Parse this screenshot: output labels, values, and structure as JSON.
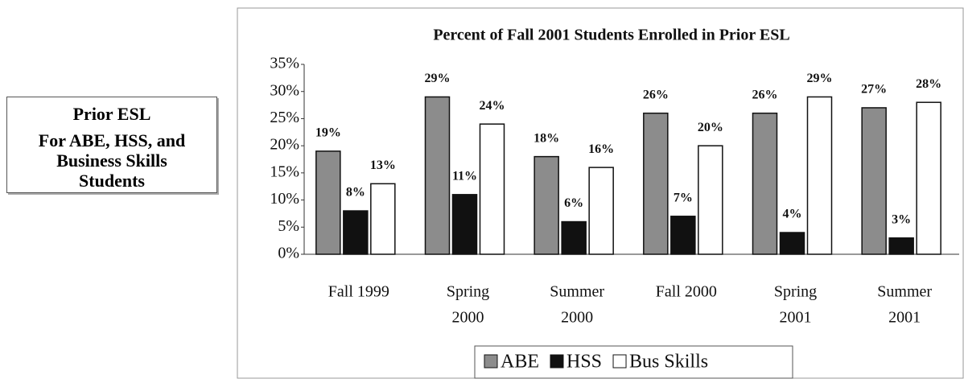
{
  "sidebar": {
    "title": "Prior ESL",
    "subtitle": "For ABE, HSS, and Business Skills Students"
  },
  "chart_data": {
    "type": "bar",
    "title": "Percent of Fall 2001 Students Enrolled in Prior ESL",
    "categories": [
      [
        "Fall 1999"
      ],
      [
        "Spring",
        "2000"
      ],
      [
        "Summer",
        "2000"
      ],
      [
        "Fall 2000"
      ],
      [
        "Spring",
        "2001"
      ],
      [
        "Summer",
        "2001"
      ]
    ],
    "series": [
      {
        "name": "ABE",
        "color": "#8c8c8c",
        "values": [
          19,
          29,
          18,
          26,
          26,
          27
        ],
        "value_labels": [
          "19%",
          "29%",
          "18%",
          "26%",
          "26%",
          "27%"
        ]
      },
      {
        "name": "HSS",
        "color": "#111111",
        "values": [
          8,
          11,
          6,
          7,
          4,
          3
        ],
        "value_labels": [
          "8%",
          "11%",
          "6%",
          "7%",
          "4%",
          "3%"
        ]
      },
      {
        "name": "Bus Skills",
        "color": "#ffffff",
        "values": [
          13,
          24,
          16,
          20,
          29,
          28
        ],
        "value_labels": [
          "13%",
          "24%",
          "16%",
          "20%",
          "29%",
          "28%"
        ]
      }
    ],
    "ylim": [
      0,
      35
    ],
    "yticks": [
      {
        "value": 0,
        "label": "0%"
      },
      {
        "value": 5,
        "label": "5%"
      },
      {
        "value": 10,
        "label": "10%"
      },
      {
        "value": 15,
        "label": "15%"
      },
      {
        "value": 20,
        "label": "20%"
      },
      {
        "value": 25,
        "label": "25%"
      },
      {
        "value": 30,
        "label": "30%"
      },
      {
        "value": 35,
        "label": "35%"
      }
    ],
    "grid": false
  }
}
